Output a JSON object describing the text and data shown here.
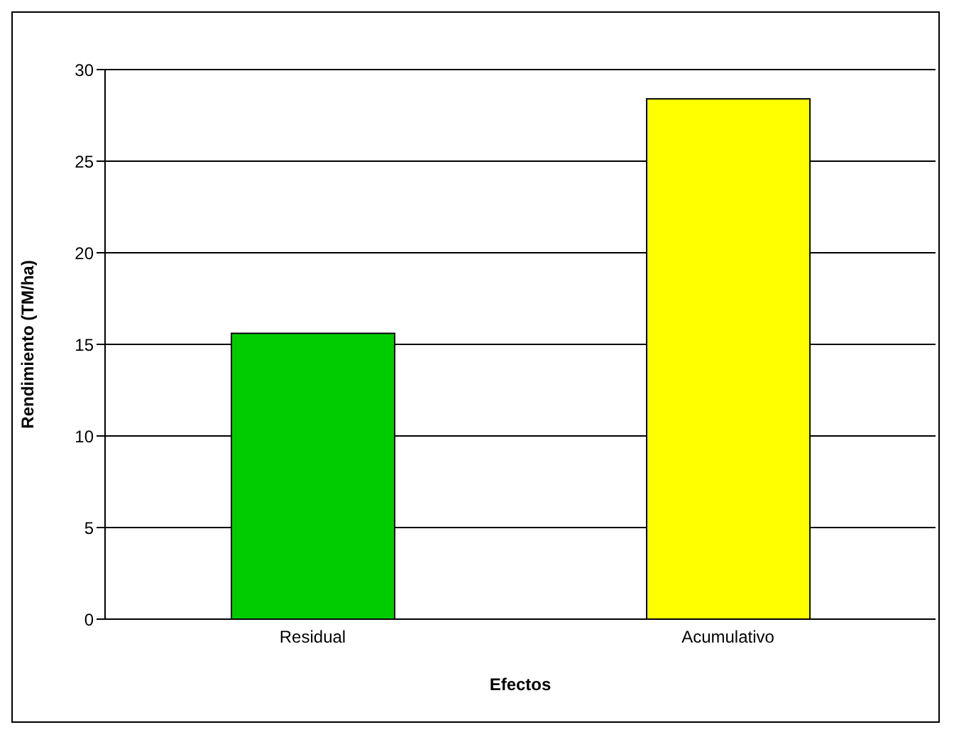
{
  "chart_data": {
    "type": "bar",
    "xlabel": "Efectos",
    "ylabel": "Rendimiento (TM/ha)",
    "categories": [
      "Residual",
      "Acumulativo"
    ],
    "values": [
      15.6,
      28.4
    ],
    "colors": [
      "#00cc00",
      "#ffff00"
    ],
    "ylim": [
      0,
      30
    ],
    "yticks": [
      0,
      5,
      10,
      15,
      20,
      25,
      30
    ],
    "grid": "y"
  }
}
